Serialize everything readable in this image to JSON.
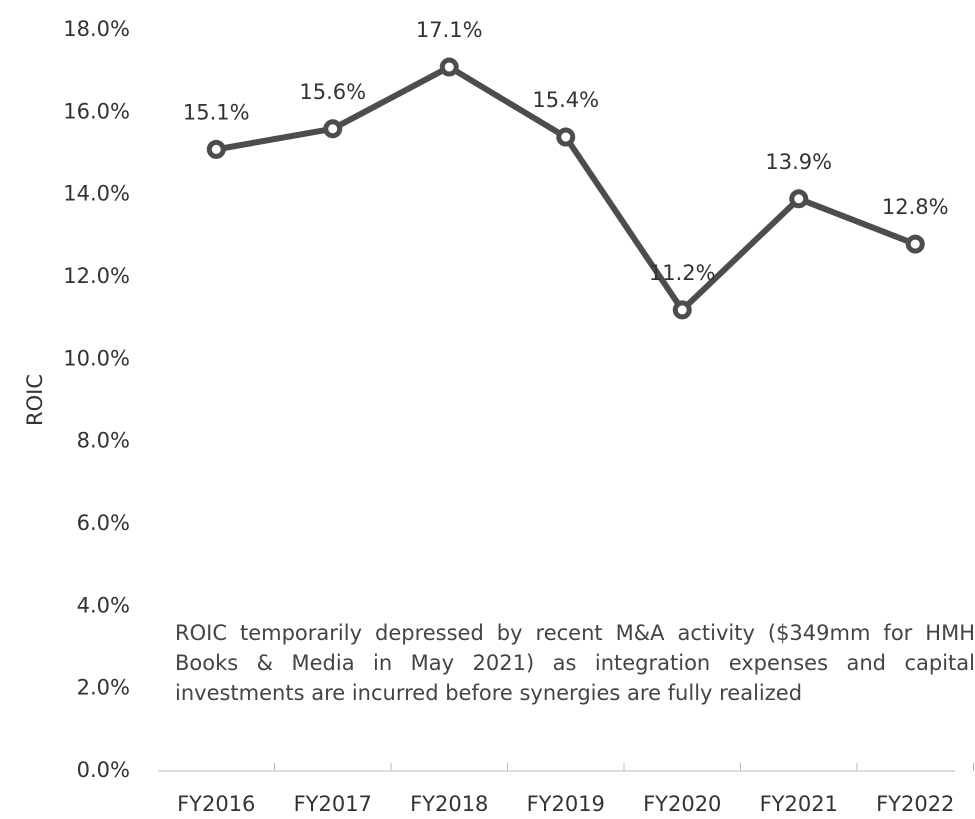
{
  "chart_data": {
    "type": "line",
    "y_label": "ROIC",
    "categories": [
      "FY2016",
      "FY2017",
      "FY2018",
      "FY2019",
      "FY2020",
      "FY2021",
      "FY2022"
    ],
    "series": [
      {
        "name": "ROIC",
        "color": "#4d4d4d",
        "values": [
          15.1,
          15.6,
          17.1,
          15.4,
          11.2,
          13.9,
          12.8
        ],
        "value_labels": [
          "15.1%",
          "15.6%",
          "17.1%",
          "15.4%",
          "11.2%",
          "13.9%",
          "12.8%"
        ]
      }
    ],
    "ylim": [
      0,
      18
    ],
    "yticks": [
      {
        "value": 0,
        "label": "0.0%"
      },
      {
        "value": 2,
        "label": "2.0%"
      },
      {
        "value": 4,
        "label": "4.0%"
      },
      {
        "value": 6,
        "label": "6.0%"
      },
      {
        "value": 8,
        "label": "8.0%"
      },
      {
        "value": 10,
        "label": "10.0%"
      },
      {
        "value": 12,
        "label": "12.0%"
      },
      {
        "value": 14,
        "label": "14.0%"
      },
      {
        "value": 16,
        "label": "16.0%"
      },
      {
        "value": 18,
        "label": "18.0%"
      }
    ],
    "annotation": "ROIC temporarily depressed by recent M&A activity ($349mm for HMH Books & Media in May 2021) as integration expenses and capital investments are incurred before synergies are fully realized"
  }
}
